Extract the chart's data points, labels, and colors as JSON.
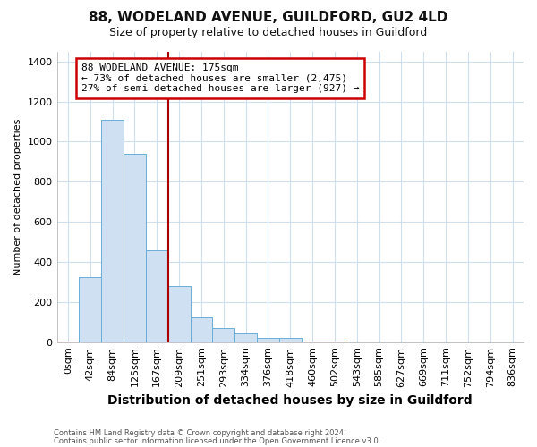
{
  "title1": "88, WODELAND AVENUE, GUILDFORD, GU2 4LD",
  "title2": "Size of property relative to detached houses in Guildford",
  "xlabel": "Distribution of detached houses by size in Guildford",
  "ylabel": "Number of detached properties",
  "footnote1": "Contains HM Land Registry data © Crown copyright and database right 2024.",
  "footnote2": "Contains public sector information licensed under the Open Government Licence v3.0.",
  "bin_labels": [
    "0sqm",
    "42sqm",
    "84sqm",
    "125sqm",
    "167sqm",
    "209sqm",
    "251sqm",
    "293sqm",
    "334sqm",
    "376sqm",
    "418sqm",
    "460sqm",
    "502sqm",
    "543sqm",
    "585sqm",
    "627sqm",
    "669sqm",
    "711sqm",
    "752sqm",
    "794sqm",
    "836sqm"
  ],
  "bar_heights": [
    5,
    325,
    1110,
    940,
    460,
    280,
    125,
    70,
    42,
    20,
    20,
    5,
    5,
    0,
    0,
    0,
    0,
    0,
    0,
    0,
    0
  ],
  "bar_color": "#cfe0f2",
  "bar_edge_color": "#6aaed6",
  "vline_x": 4.5,
  "vline_color": "#aa0000",
  "annotation_text": "88 WODELAND AVENUE: 175sqm\n← 73% of detached houses are smaller (2,475)\n27% of semi-detached houses are larger (927) →",
  "annotation_box_facecolor": "#ffffff",
  "annotation_box_edgecolor": "#cc0000",
  "ylim": [
    0,
    1450
  ],
  "yticks": [
    0,
    200,
    400,
    600,
    800,
    1000,
    1200,
    1400
  ],
  "background_color": "#ffffff",
  "grid_color": "#d0dff0",
  "title1_fontsize": 11,
  "title2_fontsize": 9,
  "xlabel_fontsize": 10,
  "ylabel_fontsize": 8,
  "tick_fontsize": 8,
  "annot_fontsize": 8
}
